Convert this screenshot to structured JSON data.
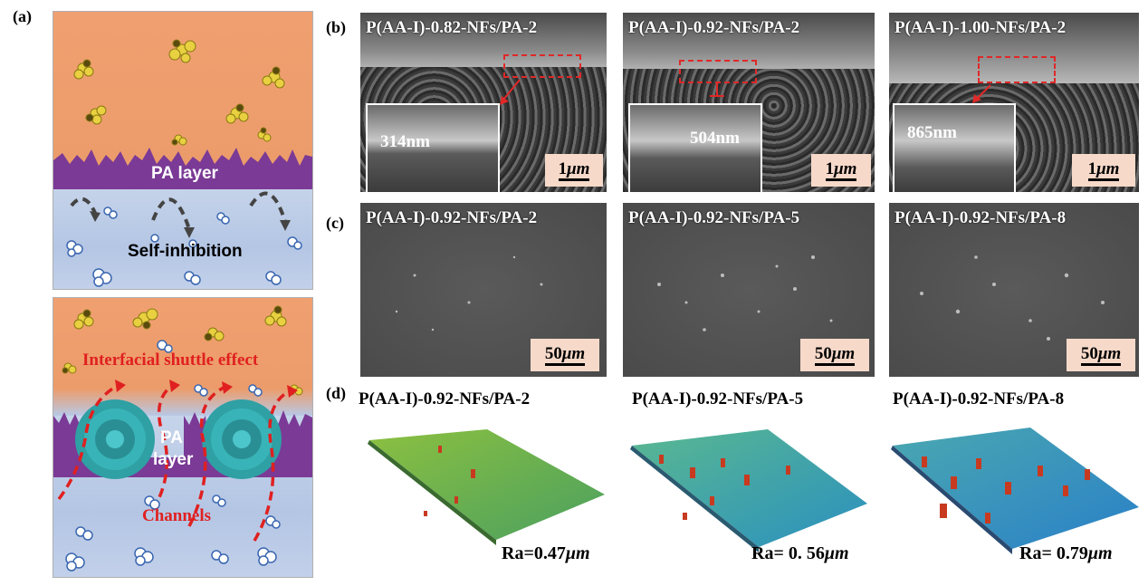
{
  "panel_labels": {
    "a": "(a)",
    "b": "(b)",
    "c": "(c)",
    "d": "(d)"
  },
  "panel_a": {
    "top_layer_label": "PA layer",
    "self_inhibition": "Self-inhibition",
    "bottom_layer_label_1": "PA",
    "bottom_layer_label_2": "layer",
    "shuttle_effect": "Interfacial shuttle effect",
    "channels": "Channels",
    "colors": {
      "feed": "#ec9c6a",
      "permeate": "#b8c8e6",
      "pa_layer": "#7a3a96",
      "nanoflower": "#2fa0a4",
      "arrow_red": "#e02020"
    }
  },
  "panel_b": [
    {
      "title": "P(AA-I)-0.82-NFs/PA-2",
      "thickness": "314nm",
      "scale": "1",
      "unit": "μm"
    },
    {
      "title": "P(AA-I)-0.92-NFs/PA-2",
      "thickness": "504nm",
      "scale": "1",
      "unit": "μm"
    },
    {
      "title": "P(AA-I)-1.00-NFs/PA-2",
      "thickness": "865nm",
      "scale": "1",
      "unit": "μm"
    }
  ],
  "panel_c": [
    {
      "title": "P(AA-I)-0.92-NFs/PA-2",
      "scale": "50",
      "unit": "μm"
    },
    {
      "title": "P(AA-I)-0.92-NFs/PA-5",
      "scale": "50",
      "unit": "μm"
    },
    {
      "title": "P(AA-I)-0.92-NFs/PA-8",
      "scale": "50",
      "unit": "μm"
    }
  ],
  "panel_d": [
    {
      "title": "P(AA-I)-0.92-NFs/PA-2",
      "ra_prefix": "Ra=0.47",
      "unit": "μm",
      "base_color": "#7ab84a"
    },
    {
      "title": "P(AA-I)-0.92-NFs/PA-5",
      "ra_prefix": "Ra= 0. 56",
      "unit": "μm",
      "base_color": "#3aaab0"
    },
    {
      "title": "P(AA-I)-0.92-NFs/PA-8",
      "ra_prefix": "Ra= 0.79",
      "unit": "μm",
      "base_color": "#3a9ac8"
    }
  ]
}
